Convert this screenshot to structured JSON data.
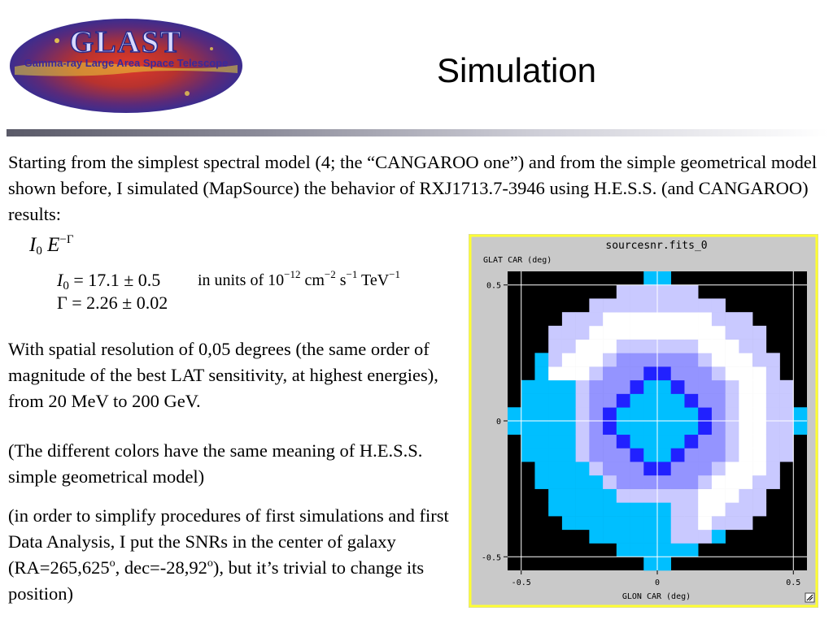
{
  "logo": {
    "title": "GLAST",
    "subtitle": "Gamma-ray Large Area Space Telescope"
  },
  "slide": {
    "title": "Simulation"
  },
  "paragraphs": {
    "p1": "Starting from the simplest spectral model (4; the “CANGAROO one”) and from the simple geometrical model shown before, I simulated (MapSource) the behavior of RXJ1713.7-3946 using H.E.S.S. (and CANGAROO) results:",
    "p2": "With spatial resolution of 0,05 degrees (the same order of magnitude of the best LAT sensitivity, at highest energies), from 20 MeV to 200 GeV.",
    "p3": "(The different colors have the same meaning of H.E.S.S. simple geometrical model)",
    "p4_a": "(in order to simplify procedures of first simulations and first Data Analysis, I put the SNRs in the center of galaxy (RA=265,625",
    "p4_deg1": "o",
    "p4_b": ",  dec=-28,92",
    "p4_deg2": "o",
    "p4_c": "), but it’s trivial to change its position)"
  },
  "formula": {
    "I0_base": "I",
    "I0_sub": "0",
    "E": "E",
    "E_exp": "−Γ",
    "row1_rest": " = 17.1 ± 0.5",
    "row2": "Γ = 2.26 ± 0.02",
    "units_pre": "in units of 10",
    "units_e1": "−12",
    "units_cm": " cm",
    "units_e2": "−2",
    "units_s": " s",
    "units_e3": "−1",
    "units_tev": " TeV",
    "units_e4": "−1"
  },
  "plot": {
    "title": "sourcesnr.fits_0",
    "ylabel": "GLAT CAR (deg)",
    "xlabel": "GLON CAR (deg)",
    "x_ticks": [
      "-0.5",
      "0",
      "0.5"
    ],
    "y_ticks": [
      "0.5",
      "0",
      "-0.5"
    ],
    "xlim": [
      -0.55,
      0.55
    ],
    "ylim": [
      -0.55,
      0.55
    ],
    "pixel_deg": 0.05,
    "colors": {
      "background": "#000000",
      "outer": "#00bfff",
      "shell": "#ffffff",
      "halo": "#c9c9ff",
      "ring_mid": "#9494ff",
      "ring": "#2121ff",
      "core": "#00bfff",
      "frame": "#c8c8c8",
      "border": "#ffff33"
    }
  }
}
